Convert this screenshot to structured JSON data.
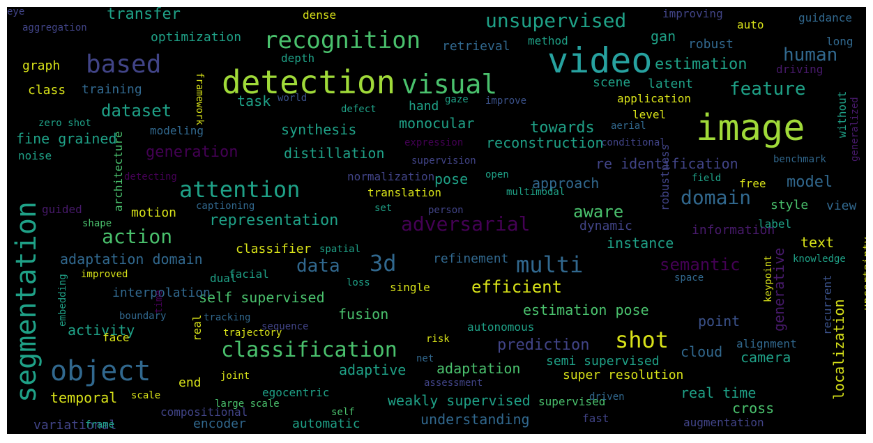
{
  "palette": {
    "yellow": "#d8e219",
    "lime": "#a0da39",
    "green": "#4ac16d",
    "teal": "#1fa187",
    "cyan": "#27a2a0",
    "blue": "#31688e",
    "slate": "#3b528b",
    "indigo": "#414487",
    "purple": "#440154",
    "plum": "#481a6c"
  },
  "words": [
    {
      "t": "image",
      "c": "lime"
    },
    {
      "t": "video",
      "c": "cyan"
    },
    {
      "t": "detection",
      "c": "lime"
    },
    {
      "t": "segmentation",
      "c": "teal"
    },
    {
      "t": "object",
      "c": "blue"
    },
    {
      "t": "recognition",
      "c": "green"
    },
    {
      "t": "visual",
      "c": "green"
    },
    {
      "t": "based",
      "c": "indigo"
    },
    {
      "t": "unsupervised",
      "c": "teal"
    },
    {
      "t": "classification",
      "c": "green"
    },
    {
      "t": "3d",
      "c": "blue"
    },
    {
      "t": "multi",
      "c": "blue"
    },
    {
      "t": "attention",
      "c": "teal"
    },
    {
      "t": "adversarial",
      "c": "purple"
    },
    {
      "t": "shot",
      "c": "yellow"
    },
    {
      "t": "domain",
      "c": "blue"
    },
    {
      "t": "action",
      "c": "green"
    },
    {
      "t": "representation",
      "c": "teal"
    },
    {
      "t": "data",
      "c": "blue"
    },
    {
      "t": "semantic",
      "c": "purple"
    },
    {
      "t": "efficient",
      "c": "yellow"
    },
    {
      "t": "human",
      "c": "blue"
    },
    {
      "t": "feature",
      "c": "teal"
    },
    {
      "t": "dataset",
      "c": "teal"
    },
    {
      "t": "estimation",
      "c": "teal"
    },
    {
      "t": "model",
      "c": "blue"
    },
    {
      "t": "aware",
      "c": "green"
    },
    {
      "t": "towards",
      "c": "teal"
    },
    {
      "t": "transfer",
      "c": "teal"
    },
    {
      "t": "prediction",
      "c": "indigo"
    },
    {
      "t": "self supervised",
      "c": "green"
    },
    {
      "t": "estimation pose",
      "c": "green"
    },
    {
      "t": "approach",
      "c": "blue"
    },
    {
      "t": "reconstruction",
      "c": "teal"
    },
    {
      "t": "re identification",
      "c": "indigo"
    },
    {
      "t": "distillation",
      "c": "teal"
    },
    {
      "t": "generation",
      "c": "purple"
    },
    {
      "t": "fine grained",
      "c": "teal"
    },
    {
      "t": "monocular",
      "c": "teal"
    },
    {
      "t": "synthesis",
      "c": "teal"
    },
    {
      "t": "fusion",
      "c": "green"
    },
    {
      "t": "adaptation domain",
      "c": "blue"
    },
    {
      "t": "task",
      "c": "teal"
    },
    {
      "t": "pose",
      "c": "teal"
    },
    {
      "t": "instance",
      "c": "teal"
    },
    {
      "t": "temporal",
      "c": "yellow"
    },
    {
      "t": "adaptive",
      "c": "teal"
    },
    {
      "t": "adaptation",
      "c": "green"
    },
    {
      "t": "weakly supervised",
      "c": "teal"
    },
    {
      "t": "understanding",
      "c": "blue"
    },
    {
      "t": "real time",
      "c": "teal"
    },
    {
      "t": "cross",
      "c": "green"
    },
    {
      "t": "camera",
      "c": "teal"
    },
    {
      "t": "semi supervised",
      "c": "teal"
    },
    {
      "t": "cloud",
      "c": "blue"
    },
    {
      "t": "point",
      "c": "slate"
    },
    {
      "t": "super resolution",
      "c": "yellow"
    },
    {
      "t": "localization",
      "c": "yellow"
    },
    {
      "t": "generative",
      "c": "plum"
    },
    {
      "t": "text",
      "c": "yellow"
    },
    {
      "t": "view",
      "c": "blue"
    },
    {
      "t": "gan",
      "c": "teal"
    },
    {
      "t": "robust",
      "c": "blue"
    },
    {
      "t": "retrieval",
      "c": "blue"
    },
    {
      "t": "optimization",
      "c": "teal"
    },
    {
      "t": "dense",
      "c": "yellow"
    },
    {
      "t": "improving",
      "c": "indigo"
    },
    {
      "t": "guidance",
      "c": "blue"
    },
    {
      "t": "auto",
      "c": "yellow"
    },
    {
      "t": "long",
      "c": "blue"
    },
    {
      "t": "aggregation",
      "c": "indigo"
    },
    {
      "t": "graph",
      "c": "yellow"
    },
    {
      "t": "class",
      "c": "yellow"
    },
    {
      "t": "training",
      "c": "blue"
    },
    {
      "t": "depth",
      "c": "teal"
    },
    {
      "t": "method",
      "c": "teal"
    },
    {
      "t": "driving",
      "c": "plum"
    },
    {
      "t": "scene",
      "c": "teal"
    },
    {
      "t": "latent",
      "c": "teal"
    },
    {
      "t": "application",
      "c": "yellow"
    },
    {
      "t": "level",
      "c": "yellow"
    },
    {
      "t": "aerial",
      "c": "blue"
    },
    {
      "t": "conditional",
      "c": "indigo"
    },
    {
      "t": "without",
      "c": "teal"
    },
    {
      "t": "generalized",
      "c": "plum"
    },
    {
      "t": "benchmark",
      "c": "blue"
    },
    {
      "t": "field",
      "c": "teal"
    },
    {
      "t": "free",
      "c": "yellow"
    },
    {
      "t": "style",
      "c": "green"
    },
    {
      "t": "world",
      "c": "slate"
    },
    {
      "t": "defect",
      "c": "teal"
    },
    {
      "t": "hand",
      "c": "teal"
    },
    {
      "t": "gaze",
      "c": "teal"
    },
    {
      "t": "improve",
      "c": "slate"
    },
    {
      "t": "expression",
      "c": "purple"
    },
    {
      "t": "supervision",
      "c": "indigo"
    },
    {
      "t": "open",
      "c": "teal"
    },
    {
      "t": "multimodal",
      "c": "teal"
    },
    {
      "t": "robustness",
      "c": "indigo"
    },
    {
      "t": "label",
      "c": "teal"
    },
    {
      "t": "information",
      "c": "plum"
    },
    {
      "t": "dynamic",
      "c": "indigo"
    },
    {
      "t": "zero shot",
      "c": "teal"
    },
    {
      "t": "modeling",
      "c": "blue"
    },
    {
      "t": "noise",
      "c": "teal"
    },
    {
      "t": "framework",
      "c": "yellow"
    },
    {
      "t": "detecting",
      "c": "purple"
    },
    {
      "t": "normalization",
      "c": "indigo"
    },
    {
      "t": "translation",
      "c": "yellow"
    },
    {
      "t": "set",
      "c": "teal"
    },
    {
      "t": "person",
      "c": "indigo"
    },
    {
      "t": "captioning",
      "c": "blue"
    },
    {
      "t": "architecture",
      "c": "green"
    },
    {
      "t": "guided",
      "c": "plum"
    },
    {
      "t": "motion",
      "c": "yellow"
    },
    {
      "t": "shape",
      "c": "green"
    },
    {
      "t": "classifier",
      "c": "yellow"
    },
    {
      "t": "spatial",
      "c": "teal"
    },
    {
      "t": "refinement",
      "c": "blue"
    },
    {
      "t": "facial",
      "c": "teal"
    },
    {
      "t": "dual",
      "c": "teal"
    },
    {
      "t": "improved",
      "c": "yellow"
    },
    {
      "t": "interpolation",
      "c": "blue"
    },
    {
      "t": "loss",
      "c": "teal"
    },
    {
      "t": "single",
      "c": "yellow"
    },
    {
      "t": "knowledge",
      "c": "teal"
    },
    {
      "t": "space",
      "c": "blue"
    },
    {
      "t": "keypoint",
      "c": "yellow"
    },
    {
      "t": "recurrent",
      "c": "slate"
    },
    {
      "t": "uncertainty",
      "c": "yellow"
    },
    {
      "t": "embedding",
      "c": "teal"
    },
    {
      "t": "boundary",
      "c": "blue"
    },
    {
      "t": "time",
      "c": "purple"
    },
    {
      "t": "real",
      "c": "yellow"
    },
    {
      "t": "tracking",
      "c": "blue"
    },
    {
      "t": "sequence",
      "c": "indigo"
    },
    {
      "t": "autonomous",
      "c": "teal"
    },
    {
      "t": "activity",
      "c": "teal"
    },
    {
      "t": "face",
      "c": "yellow"
    },
    {
      "t": "trajectory",
      "c": "yellow"
    },
    {
      "t": "risk",
      "c": "yellow"
    },
    {
      "t": "alignment",
      "c": "blue"
    },
    {
      "t": "net",
      "c": "blue"
    },
    {
      "t": "end",
      "c": "yellow"
    },
    {
      "t": "joint",
      "c": "yellow"
    },
    {
      "t": "assessment",
      "c": "indigo"
    },
    {
      "t": "scale",
      "c": "yellow"
    },
    {
      "t": "egocentric",
      "c": "teal"
    },
    {
      "t": "large scale",
      "c": "green"
    },
    {
      "t": "supervised",
      "c": "green"
    },
    {
      "t": "driven",
      "c": "blue"
    },
    {
      "t": "compositional",
      "c": "indigo"
    },
    {
      "t": "self",
      "c": "green"
    },
    {
      "t": "variational",
      "c": "indigo"
    },
    {
      "t": "frame",
      "c": "teal"
    },
    {
      "t": "encoder",
      "c": "blue"
    },
    {
      "t": "automatic",
      "c": "teal"
    },
    {
      "t": "fast",
      "c": "indigo"
    },
    {
      "t": "augmentation",
      "c": "indigo"
    },
    {
      "t": "eye",
      "c": "indigo"
    }
  ]
}
